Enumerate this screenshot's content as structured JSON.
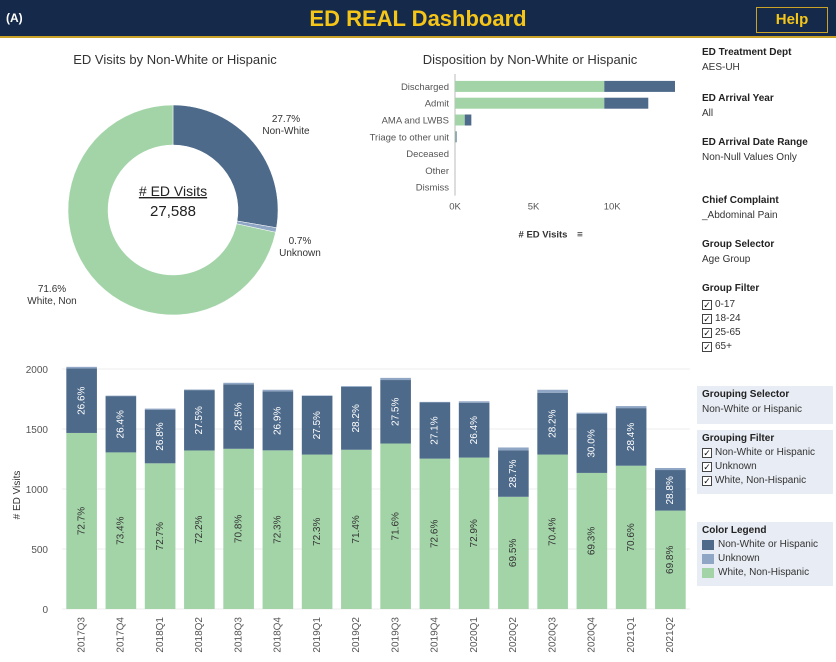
{
  "header": {
    "corner": "(A)",
    "title": "ED REAL Dashboard",
    "help": "Help"
  },
  "donut": {
    "title": "ED Visits by Non-White or Hispanic",
    "center_label": "# ED Visits",
    "center_value": "27,588",
    "labels": [
      {
        "pct": "27.7%",
        "name": "Non-White"
      },
      {
        "pct": "0.7%",
        "name": "Unknown"
      },
      {
        "pct": "71.6%",
        "name": "White, Non"
      }
    ]
  },
  "disposition": {
    "title": "Disposition by Non-White or Hispanic",
    "axis_label": "# ED Visits"
  },
  "filters": {
    "treatment_dept": {
      "label": "ED Treatment Dept",
      "value": "AES-UH"
    },
    "arrival_year": {
      "label": "ED Arrival Year",
      "value": "All"
    },
    "date_range": {
      "label": "ED Arrival Date Range",
      "value": "Non-Null Values Only"
    },
    "chief_complaint": {
      "label": "Chief Complaint",
      "value": "_Abdominal Pain"
    },
    "group_selector": {
      "label": "Group Selector",
      "value": "Age Group"
    },
    "group_filter": {
      "label": "Group Filter",
      "items": [
        "0-17",
        "18-24",
        "25-65",
        "65+"
      ]
    },
    "grouping_selector": {
      "label": "Grouping Selector",
      "value": "Non-White or Hispanic"
    },
    "grouping_filter": {
      "label": "Grouping Filter",
      "items": [
        "Non-White or Hispanic",
        "Unknown",
        "White, Non-Hispanic"
      ]
    },
    "color_legend": {
      "label": "Color Legend",
      "items": [
        "Non-White or Hispanic",
        "Unknown",
        "White, Non-Hispanic"
      ]
    }
  },
  "colors": {
    "nonwhite": "#4e6a8a",
    "unknown": "#8fa6c4",
    "white": "#a3d4a8"
  },
  "chart_data": [
    {
      "type": "pie",
      "title": "ED Visits by Non-White or Hispanic",
      "categories": [
        "Non-White",
        "Unknown",
        "White, Non"
      ],
      "values": [
        27.7,
        0.7,
        71.6
      ]
    },
    {
      "type": "bar",
      "title": "Disposition by Non-White or Hispanic",
      "categories": [
        "Discharged",
        "Admit",
        "AMA and LWBS",
        "Triage to other unit",
        "Deceased",
        "Other",
        "Dismiss"
      ],
      "series": [
        {
          "name": "White, Non-Hispanic",
          "values": [
            9500,
            9500,
            620,
            40,
            0,
            0,
            0
          ]
        },
        {
          "name": "Non-White or Hispanic",
          "values": [
            4500,
            2800,
            420,
            60,
            0,
            0,
            0
          ]
        }
      ],
      "xlabel": "# ED Visits",
      "ticks": [
        "0K",
        "5K",
        "10K"
      ],
      "xlim": [
        0,
        14000
      ]
    },
    {
      "type": "bar",
      "categories": [
        "2017Q3",
        "2017Q4",
        "2018Q1",
        "2018Q2",
        "2018Q3",
        "2018Q4",
        "2019Q1",
        "2019Q2",
        "2019Q3",
        "2019Q4",
        "2020Q1",
        "2020Q2",
        "2020Q3",
        "2020Q4",
        "2021Q1",
        "2021Q2"
      ],
      "series": [
        {
          "name": "White, Non-Hispanic",
          "values": [
            1467,
            1305,
            1214,
            1321,
            1335,
            1322,
            1287,
            1327,
            1379,
            1253,
            1262,
            935,
            1287,
            1134,
            1194,
            820
          ],
          "labels": [
            "72.7%",
            "73.4%",
            "72.7%",
            "72.2%",
            "70.8%",
            "72.3%",
            "72.3%",
            "71.4%",
            "71.6%",
            "72.6%",
            "72.9%",
            "69.5%",
            "70.4%",
            "69.3%",
            "70.6%",
            "69.8%"
          ]
        },
        {
          "name": "Non-White or Hispanic",
          "values": [
            537,
            469,
            447,
            503,
            537,
            492,
            489,
            524,
            529,
            468,
            457,
            386,
            515,
            491,
            480,
            338
          ],
          "labels": [
            "26.6%",
            "26.4%",
            "26.8%",
            "27.5%",
            "28.5%",
            "26.9%",
            "27.5%",
            "28.2%",
            "27.5%",
            "27.1%",
            "26.4%",
            "28.7%",
            "28.2%",
            "30.0%",
            "28.4%",
            "28.8%"
          ]
        },
        {
          "name": "Unknown",
          "values": [
            14,
            4,
            9,
            5,
            13,
            13,
            4,
            7,
            18,
            5,
            12,
            25,
            25,
            11,
            17,
            17
          ]
        }
      ],
      "ylabel": "# ED Visits",
      "ylim": [
        0,
        2000
      ],
      "yticks": [
        0,
        500,
        1000,
        1500,
        2000
      ]
    }
  ]
}
